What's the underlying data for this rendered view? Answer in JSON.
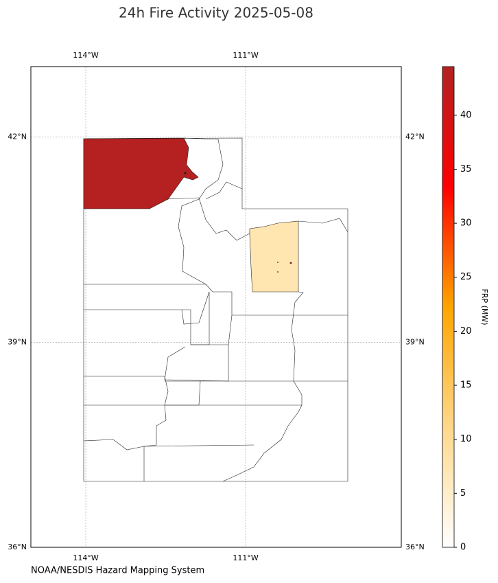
{
  "chart_data": {
    "type": "choropleth",
    "title": "24h Fire Activity 2025-05-08",
    "xlim": [
      -115.03,
      -108.08
    ],
    "ylim": [
      36,
      43.03
    ],
    "xticks": [
      {
        "value": -114,
        "label": "114°W"
      },
      {
        "value": -111,
        "label": "111°W"
      }
    ],
    "yticks": [
      {
        "value": 42,
        "label": "42°N"
      },
      {
        "value": 39,
        "label": "39°N"
      },
      {
        "value": 36,
        "label": "36°N"
      }
    ],
    "grid": true,
    "shaded_values": [
      44,
      7.5
    ],
    "colorbar": {
      "label": "FRP (MW)",
      "lim": [
        0,
        44.5
      ],
      "ticks": [
        0,
        5,
        10,
        15,
        20,
        25,
        30,
        35,
        40
      ],
      "colormap": [
        "#ffffff",
        "#ffd88a",
        "#ffa500",
        "#ff0000",
        "#b22222"
      ]
    },
    "credit": "NOAA/NESDIS Hazard Mapping System"
  }
}
